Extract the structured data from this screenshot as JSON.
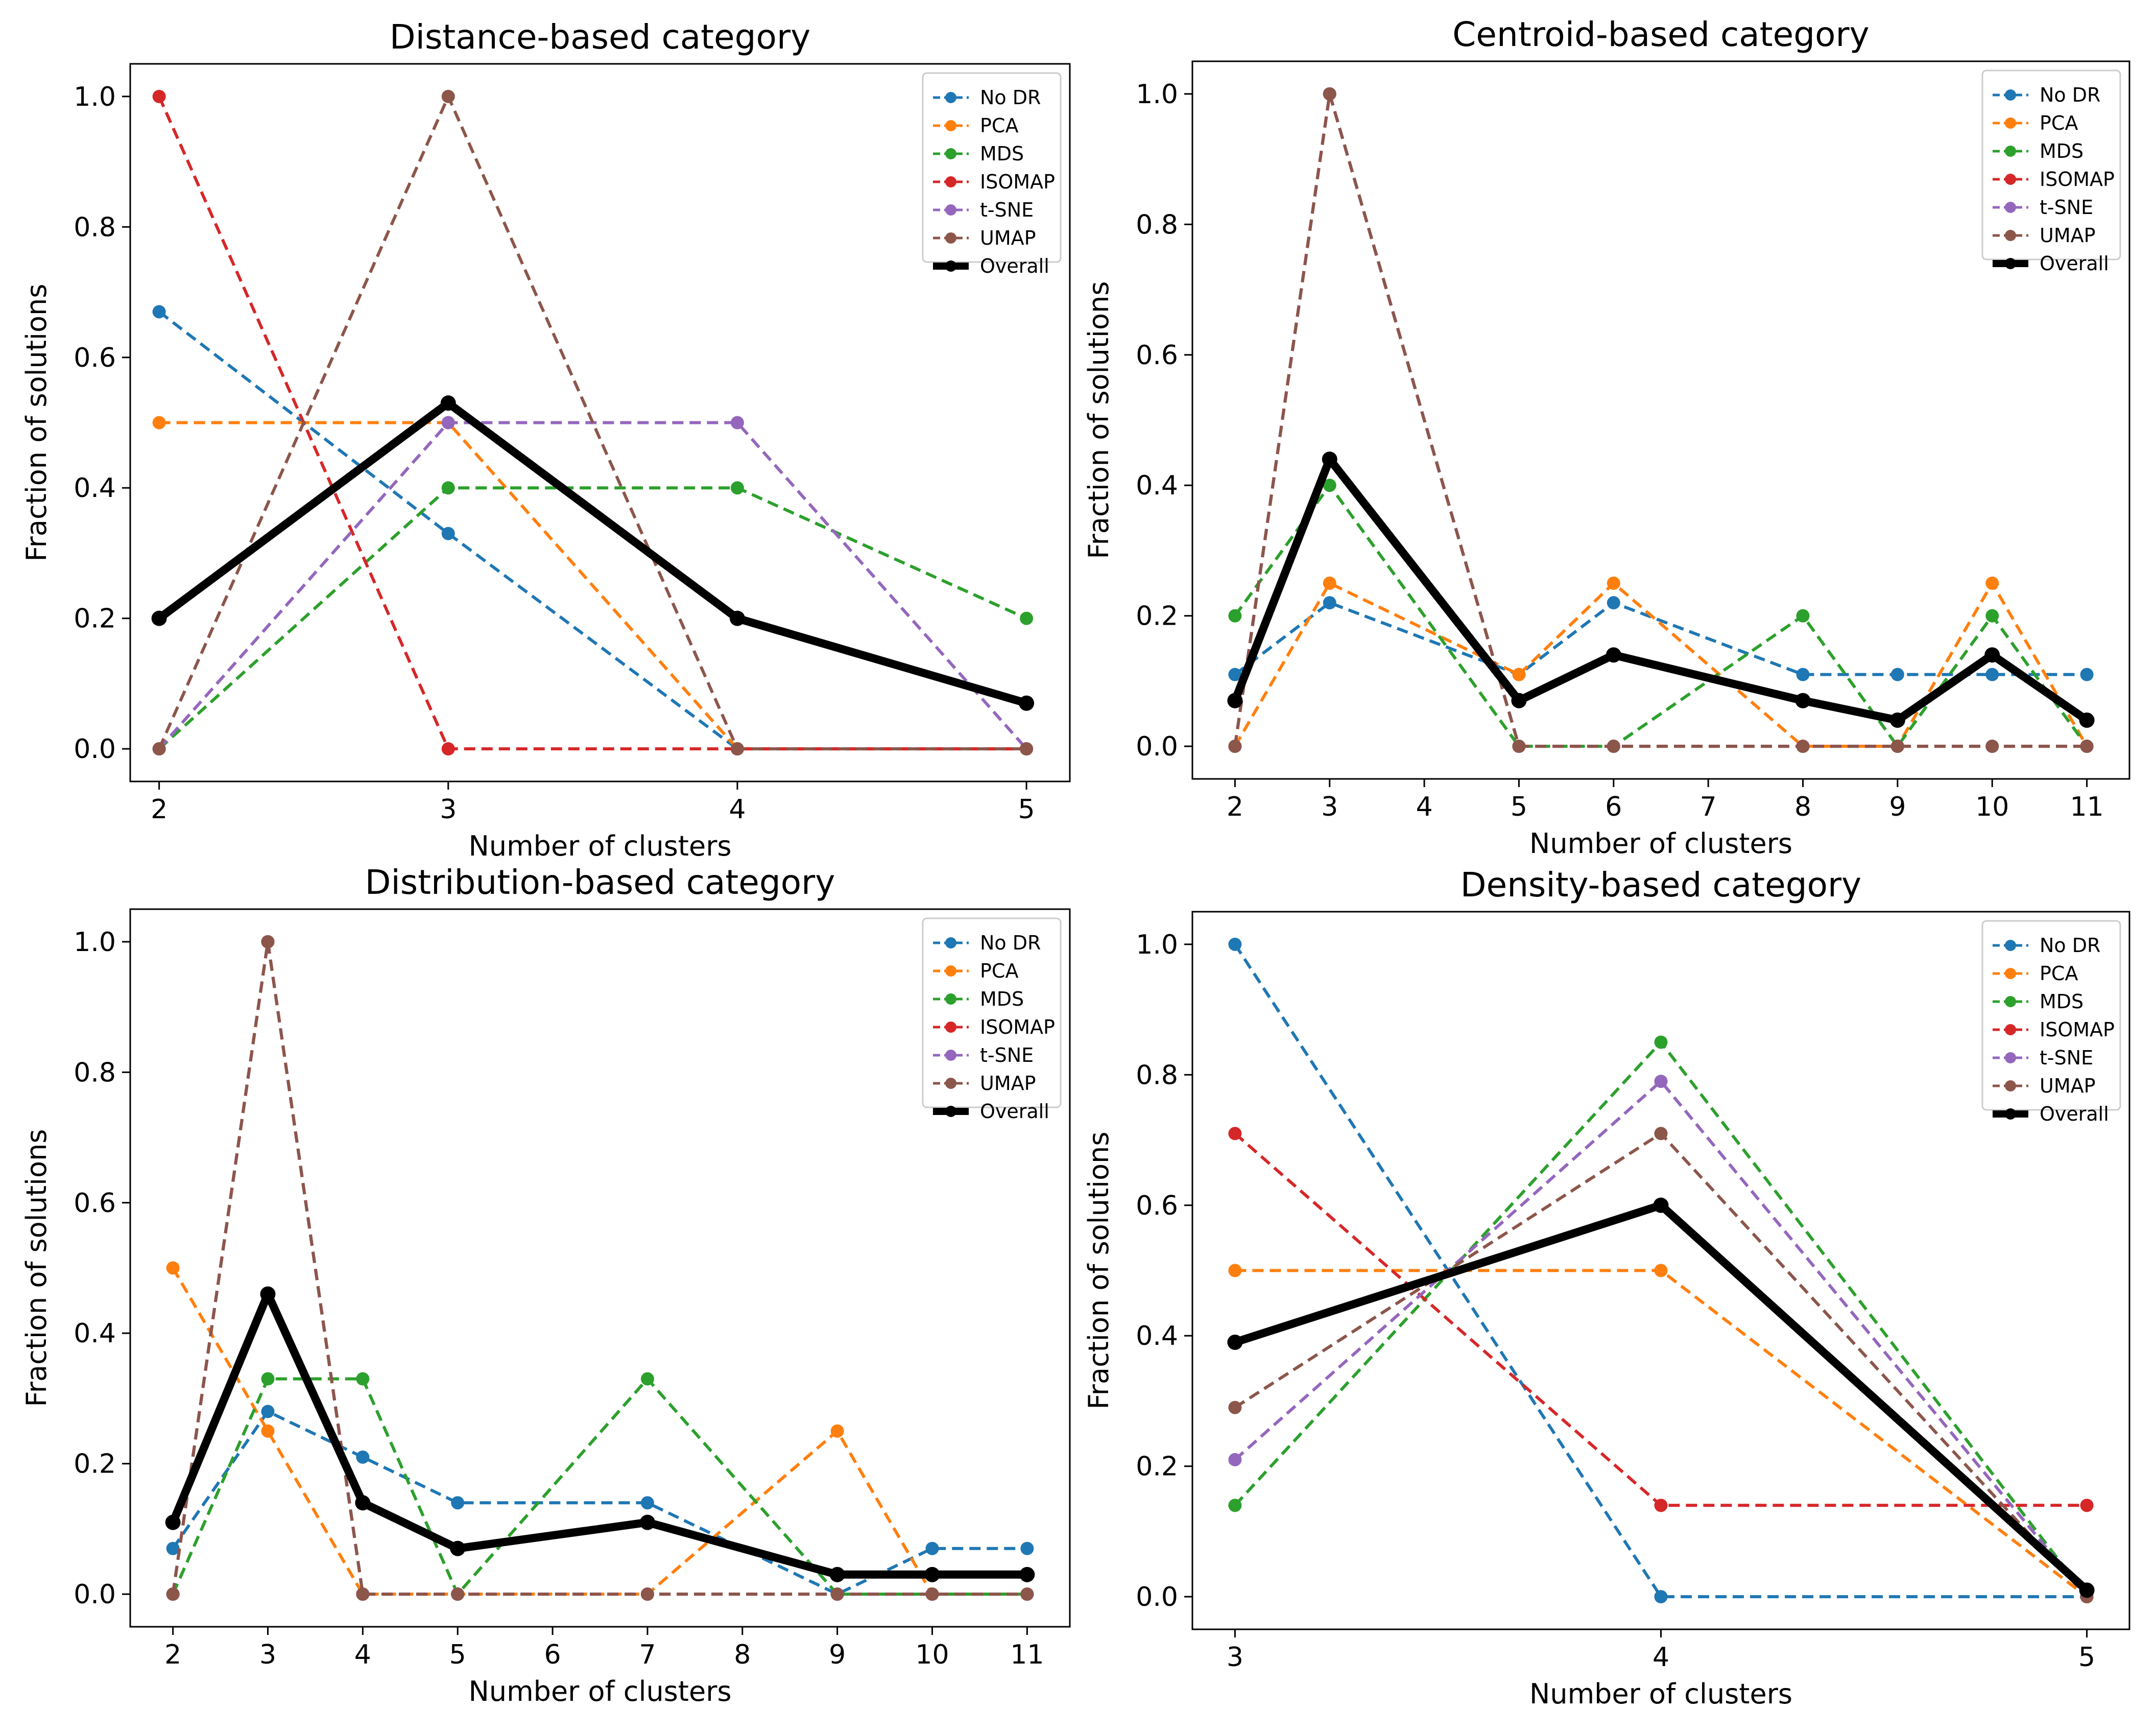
{
  "figure": {
    "series_styles": [
      {
        "name": "No DR",
        "color": "#1f77b4",
        "dashed": true
      },
      {
        "name": "PCA",
        "color": "#ff7f0e",
        "dashed": true
      },
      {
        "name": "MDS",
        "color": "#2ca02c",
        "dashed": true
      },
      {
        "name": "ISOMAP",
        "color": "#d62728",
        "dashed": true
      },
      {
        "name": "t-SNE",
        "color": "#9467bd",
        "dashed": true
      },
      {
        "name": "UMAP",
        "color": "#8c564b",
        "dashed": true
      },
      {
        "name": "Overall",
        "color": "#000000",
        "dashed": false
      }
    ]
  },
  "chart_data": [
    {
      "type": "line",
      "title": "Distance-based category",
      "xlabel": "Number of clusters",
      "ylabel": "Fraction of solutions",
      "x": [
        2,
        3,
        4,
        5
      ],
      "xticks": [
        2,
        3,
        4,
        5
      ],
      "xlim": [
        1.9,
        5.15
      ],
      "yticks": [
        0.0,
        0.2,
        0.4,
        0.6,
        0.8,
        1.0
      ],
      "ytick_labels": [
        "0.0",
        "0.2",
        "0.4",
        "0.6",
        "0.8",
        "1.0"
      ],
      "ylim": [
        -0.05,
        1.05
      ],
      "legend": "top-right",
      "series": [
        {
          "name": "No DR",
          "values": [
            0.67,
            0.33,
            0.0,
            0.0
          ]
        },
        {
          "name": "PCA",
          "values": [
            0.5,
            0.5,
            0.0,
            0.0
          ]
        },
        {
          "name": "MDS",
          "values": [
            0.0,
            0.4,
            0.4,
            0.2
          ]
        },
        {
          "name": "ISOMAP",
          "values": [
            1.0,
            0.0,
            0.0,
            0.0
          ]
        },
        {
          "name": "t-SNE",
          "values": [
            0.0,
            0.5,
            0.5,
            0.0
          ]
        },
        {
          "name": "UMAP",
          "values": [
            0.0,
            1.0,
            0.0,
            0.0
          ]
        },
        {
          "name": "Overall",
          "values": [
            0.2,
            0.53,
            0.2,
            0.07
          ]
        }
      ]
    },
    {
      "type": "line",
      "title": "Centroid-based category",
      "xlabel": "Number of clusters",
      "ylabel": "Fraction of solutions",
      "x": [
        2,
        3,
        5,
        6,
        8,
        9,
        10,
        11
      ],
      "xticks": [
        2,
        3,
        4,
        5,
        6,
        7,
        8,
        9,
        10,
        11
      ],
      "xlim": [
        1.55,
        11.45
      ],
      "yticks": [
        0.0,
        0.2,
        0.4,
        0.6,
        0.8,
        1.0
      ],
      "ytick_labels": [
        "0.0",
        "0.2",
        "0.4",
        "0.6",
        "0.8",
        "1.0"
      ],
      "ylim": [
        -0.05,
        1.05
      ],
      "legend": "top-right",
      "series": [
        {
          "name": "No DR",
          "values": [
            0.11,
            0.22,
            0.11,
            0.22,
            0.11,
            0.11,
            0.11,
            0.11
          ]
        },
        {
          "name": "PCA",
          "values": [
            0.0,
            0.25,
            0.11,
            0.25,
            0.0,
            0.0,
            0.25,
            0.0
          ]
        },
        {
          "name": "MDS",
          "values": [
            0.2,
            0.4,
            0.0,
            0.0,
            0.2,
            0.0,
            0.2,
            0.0
          ]
        },
        {
          "name": "ISOMAP",
          "values": [
            0.0,
            1.0,
            0.0,
            0.0,
            0.0,
            0.0,
            0.0,
            0.0
          ]
        },
        {
          "name": "t-SNE",
          "values": [
            0.0,
            1.0,
            0.0,
            0.0,
            0.0,
            0.0,
            0.0,
            0.0
          ]
        },
        {
          "name": "UMAP",
          "values": [
            0.0,
            1.0,
            0.0,
            0.0,
            0.0,
            0.0,
            0.0,
            0.0
          ]
        },
        {
          "name": "Overall",
          "values": [
            0.07,
            0.44,
            0.07,
            0.14,
            0.07,
            0.04,
            0.14,
            0.04
          ]
        }
      ]
    },
    {
      "type": "line",
      "title": "Distribution-based category",
      "xlabel": "Number of clusters",
      "ylabel": "Fraction of solutions",
      "x": [
        2,
        3,
        4,
        5,
        7,
        9,
        10,
        11
      ],
      "xticks": [
        2,
        3,
        4,
        5,
        6,
        7,
        8,
        9,
        10,
        11
      ],
      "xlim": [
        1.55,
        11.45
      ],
      "yticks": [
        0.0,
        0.2,
        0.4,
        0.6,
        0.8,
        1.0
      ],
      "ytick_labels": [
        "0.0",
        "0.2",
        "0.4",
        "0.6",
        "0.8",
        "1.0"
      ],
      "ylim": [
        -0.05,
        1.05
      ],
      "legend": "top-right",
      "series": [
        {
          "name": "No DR",
          "values": [
            0.07,
            0.28,
            0.21,
            0.14,
            0.14,
            0.0,
            0.07,
            0.07
          ]
        },
        {
          "name": "PCA",
          "values": [
            0.5,
            0.25,
            0.0,
            0.0,
            0.0,
            0.25,
            0.0,
            0.0
          ]
        },
        {
          "name": "MDS",
          "values": [
            0.0,
            0.33,
            0.33,
            0.0,
            0.33,
            0.0,
            0.0,
            0.0
          ]
        },
        {
          "name": "ISOMAP",
          "values": [
            0.0,
            1.0,
            0.0,
            0.0,
            0.0,
            0.0,
            0.0,
            0.0
          ]
        },
        {
          "name": "t-SNE",
          "values": [
            0.0,
            1.0,
            0.0,
            0.0,
            0.0,
            0.0,
            0.0,
            0.0
          ]
        },
        {
          "name": "UMAP",
          "values": [
            0.0,
            1.0,
            0.0,
            0.0,
            0.0,
            0.0,
            0.0,
            0.0
          ]
        },
        {
          "name": "Overall",
          "values": [
            0.11,
            0.46,
            0.14,
            0.07,
            0.11,
            0.03,
            0.03,
            0.03
          ]
        }
      ]
    },
    {
      "type": "line",
      "title": "Density-based category",
      "xlabel": "Number of clusters",
      "ylabel": "Fraction of solutions",
      "x": [
        3,
        4,
        5
      ],
      "xticks": [
        3,
        4,
        5
      ],
      "xlim": [
        2.9,
        5.1
      ],
      "yticks": [
        0.0,
        0.2,
        0.4,
        0.6,
        0.8,
        1.0
      ],
      "ytick_labels": [
        "0.0",
        "0.2",
        "0.4",
        "0.6",
        "0.8",
        "1.0"
      ],
      "ylim": [
        -0.05,
        1.05
      ],
      "legend": "top-right",
      "series": [
        {
          "name": "No DR",
          "values": [
            1.0,
            0.0,
            0.0
          ]
        },
        {
          "name": "PCA",
          "values": [
            0.5,
            0.5,
            0.0
          ]
        },
        {
          "name": "MDS",
          "values": [
            0.14,
            0.85,
            0.0
          ]
        },
        {
          "name": "ISOMAP",
          "values": [
            0.71,
            0.14,
            0.14
          ]
        },
        {
          "name": "t-SNE",
          "values": [
            0.21,
            0.79,
            0.0
          ]
        },
        {
          "name": "UMAP",
          "values": [
            0.29,
            0.71,
            0.0
          ]
        },
        {
          "name": "Overall",
          "values": [
            0.39,
            0.6,
            0.01
          ]
        }
      ]
    }
  ]
}
